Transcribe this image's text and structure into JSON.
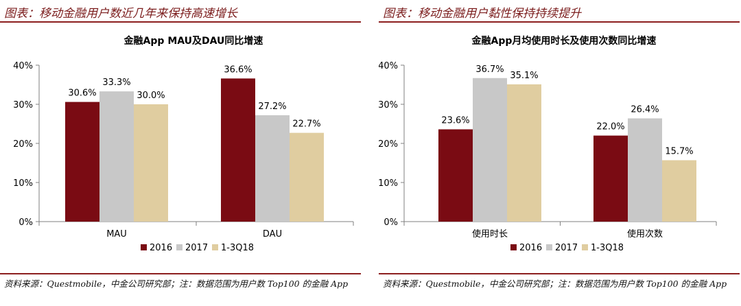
{
  "colors": {
    "accent": "#8c1e1e",
    "series": [
      "#7a0b13",
      "#c8c8c8",
      "#e0cda0"
    ]
  },
  "left": {
    "figure_title": "图表：移动金融用户数近几年来保持高速增长",
    "source_note": "资料来源：Questmobile，中金公司研究部；注：数据范围为用户数 Top100 的金融 App"
  },
  "right": {
    "figure_title": "图表：移动金融用户黏性保持持续提升",
    "source_note": "资料来源：Questmobile，中金公司研究部；注：数据范围为用户数 Top100 的金融 App"
  },
  "chart_data": [
    {
      "type": "bar",
      "title": "金融App MAU及DAU同比增速",
      "categories": [
        "MAU",
        "DAU"
      ],
      "series": [
        {
          "name": "2016",
          "values": [
            30.6,
            36.6
          ]
        },
        {
          "name": "2017",
          "values": [
            33.3,
            27.2
          ]
        },
        {
          "name": "1-3Q18",
          "values": [
            30.0,
            22.7
          ]
        }
      ],
      "value_labels": [
        [
          "30.6%",
          "36.6%"
        ],
        [
          "33.3%",
          "27.2%"
        ],
        [
          "30.0%",
          "22.7%"
        ]
      ],
      "y_ticks": [
        "0%",
        "10%",
        "20%",
        "30%",
        "40%"
      ],
      "ylim": [
        0,
        40
      ],
      "legend_position": "bottom",
      "grid": false
    },
    {
      "type": "bar",
      "title": "金融App月均使用时长及使用次数同比增速",
      "categories": [
        "使用时长",
        "使用次数"
      ],
      "series": [
        {
          "name": "2016",
          "values": [
            23.6,
            22.0
          ]
        },
        {
          "name": "2017",
          "values": [
            36.7,
            26.4
          ]
        },
        {
          "name": "1-3Q18",
          "values": [
            35.1,
            15.7
          ]
        }
      ],
      "value_labels": [
        [
          "23.6%",
          "22.0%"
        ],
        [
          "36.7%",
          "26.4%"
        ],
        [
          "35.1%",
          "15.7%"
        ]
      ],
      "y_ticks": [
        "0%",
        "10%",
        "20%",
        "30%",
        "40%"
      ],
      "ylim": [
        0,
        40
      ],
      "legend_position": "bottom",
      "grid": false
    }
  ]
}
